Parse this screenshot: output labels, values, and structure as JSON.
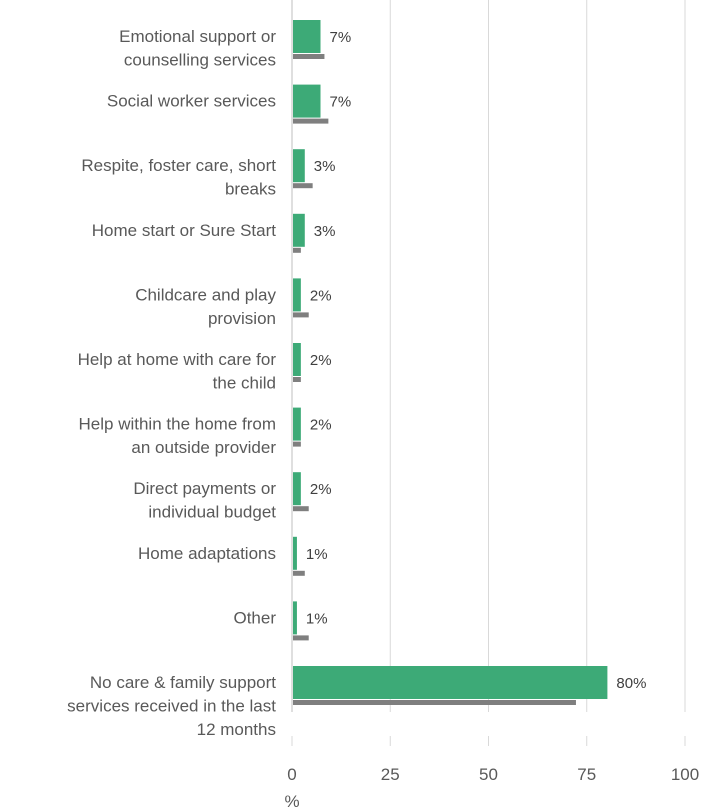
{
  "chart_data": {
    "type": "bar",
    "orientation": "horizontal",
    "categories": [
      [
        "Emotional support or",
        "counselling services"
      ],
      [
        "Social worker services"
      ],
      [
        "Respite, foster care, short",
        "breaks"
      ],
      [
        "Home start or Sure Start"
      ],
      [
        "Childcare and play",
        "provision"
      ],
      [
        "Help at home with care for",
        "the child"
      ],
      [
        "Help within the home from",
        "an outside provider"
      ],
      [
        "Direct payments or",
        "individual budget"
      ],
      [
        "Home adaptations"
      ],
      [
        "Other"
      ],
      [
        "No care & family support",
        "services received in the last",
        "12 months"
      ]
    ],
    "series": [
      {
        "color": "#3daa77",
        "values": [
          7,
          7,
          3,
          3,
          2,
          2,
          2,
          2,
          1,
          1,
          80
        ],
        "data_labels": [
          "7%",
          "7%",
          "3%",
          "3%",
          "2%",
          "2%",
          "2%",
          "2%",
          "1%",
          "1%",
          "80%"
        ]
      },
      {
        "color": "#7f7f7f",
        "values": [
          8,
          9,
          5,
          2,
          4,
          2,
          2,
          4,
          3,
          4,
          72
        ]
      }
    ],
    "xlim": [
      0,
      100
    ],
    "xticks": [
      0,
      25,
      50,
      75,
      100
    ],
    "xlabel": "%",
    "grid": true
  }
}
